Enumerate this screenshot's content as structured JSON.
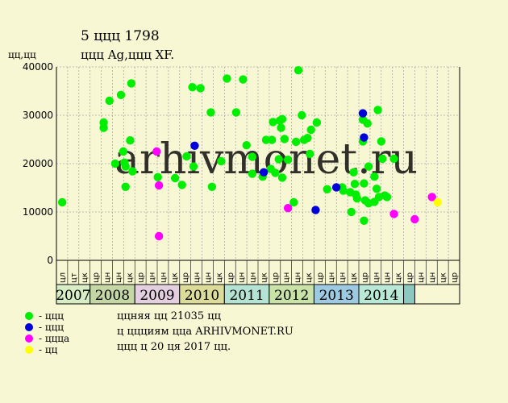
{
  "header": {
    "title": "5 ццц 1798",
    "subtitle": "ццц Ag,ццц XF."
  },
  "watermark": "arhivmonet.ru",
  "legend": [
    {
      "label": "- ццц",
      "color": "#00ee00"
    },
    {
      "label": "- ццц",
      "color": "#0000dd"
    },
    {
      "label": "- цццa",
      "color": "#ff00ff"
    },
    {
      "label": "- цц",
      "color": "#ffff00"
    }
  ],
  "notes": [
    "ццняя цц 21035 цц",
    "ц ццциям цца ARHIVMONET.RU",
    "ццц ц 20 ця 2017 цц."
  ],
  "chart_data": {
    "type": "scatter",
    "ylabel": "цц,цц",
    "ylim": [
      0,
      40000
    ],
    "yticks": [
      0,
      10000,
      20000,
      30000,
      40000
    ],
    "x_range": [
      0,
      35
    ],
    "grid": true,
    "month_labels": [
      "цл",
      "цт",
      "цк",
      "цр",
      "цн",
      "цн",
      "цк",
      "цр",
      "цн",
      "цн",
      "цк",
      "цр",
      "цн",
      "цн",
      "цк",
      "цр",
      "цн",
      "цн",
      "цк",
      "цр",
      "цн",
      "цн",
      "цк",
      "цр",
      "цн",
      "цн",
      "цк",
      "цр",
      "цн",
      "цн",
      "цк",
      "цр",
      "цн",
      "цн",
      "цк",
      "цр"
    ],
    "years": [
      {
        "label": "2007",
        "start": 0,
        "end": 3,
        "color": "#d6edc5"
      },
      {
        "label": "2008",
        "start": 3,
        "end": 7,
        "color": "#c6d7a6"
      },
      {
        "label": "2009",
        "start": 7,
        "end": 11,
        "color": "#e4cfe0"
      },
      {
        "label": "2010",
        "start": 11,
        "end": 15,
        "color": "#dcdc9a"
      },
      {
        "label": "2011",
        "start": 15,
        "end": 19,
        "color": "#b5e3d3"
      },
      {
        "label": "2012",
        "start": 19,
        "end": 23,
        "color": "#c9e2a8"
      },
      {
        "label": "2013",
        "start": 23,
        "end": 27,
        "color": "#9ecae1"
      },
      {
        "label": "2014",
        "start": 27,
        "end": 31,
        "color": "#b9e8d6"
      },
      {
        "label": "",
        "start": 31,
        "end": 32,
        "color": "#8cc7c0"
      }
    ],
    "series": [
      {
        "color": "#00ee00",
        "points": [
          [
            0.5,
            12000
          ],
          [
            4.1,
            28500
          ],
          [
            4.1,
            27400
          ],
          [
            4.6,
            33000
          ],
          [
            5.1,
            20000
          ],
          [
            5.6,
            34200
          ],
          [
            5.8,
            22500
          ],
          [
            5.9,
            20200
          ],
          [
            6.0,
            19400
          ],
          [
            6.0,
            15200
          ],
          [
            6.4,
            24800
          ],
          [
            6.5,
            36600
          ],
          [
            6.6,
            18400
          ],
          [
            8.8,
            17200
          ],
          [
            10.3,
            17000
          ],
          [
            10.9,
            15600
          ],
          [
            11.3,
            21500
          ],
          [
            11.8,
            35800
          ],
          [
            11.9,
            19400
          ],
          [
            12.5,
            35600
          ],
          [
            13.4,
            30600
          ],
          [
            13.5,
            15200
          ],
          [
            14.3,
            20500
          ],
          [
            14.8,
            37600
          ],
          [
            15.6,
            30600
          ],
          [
            16.2,
            37400
          ],
          [
            16.5,
            23800
          ],
          [
            17.0,
            21400
          ],
          [
            17.0,
            17900
          ],
          [
            17.9,
            17300
          ],
          [
            18.2,
            24900
          ],
          [
            18.6,
            18900
          ],
          [
            18.7,
            24900
          ],
          [
            18.8,
            28600
          ],
          [
            19.0,
            18100
          ],
          [
            19.3,
            20900
          ],
          [
            19.4,
            28900
          ],
          [
            19.5,
            27400
          ],
          [
            19.6,
            29200
          ],
          [
            19.6,
            17100
          ],
          [
            19.8,
            25100
          ],
          [
            20.1,
            20800
          ],
          [
            20.6,
            12000
          ],
          [
            20.8,
            24500
          ],
          [
            21.0,
            39300
          ],
          [
            21.3,
            30000
          ],
          [
            21.5,
            24900
          ],
          [
            21.8,
            25300
          ],
          [
            22.0,
            22000
          ],
          [
            22.1,
            27000
          ],
          [
            22.6,
            28500
          ],
          [
            23.5,
            14700
          ],
          [
            24.8,
            15100
          ],
          [
            24.9,
            14400
          ],
          [
            25.5,
            14100
          ],
          [
            25.6,
            10000
          ],
          [
            25.8,
            18200
          ],
          [
            25.9,
            15800
          ],
          [
            26.0,
            13600
          ],
          [
            26.1,
            12800
          ],
          [
            26.6,
            29100
          ],
          [
            26.6,
            24600
          ],
          [
            26.7,
            15900
          ],
          [
            26.7,
            8200
          ],
          [
            26.8,
            12400
          ],
          [
            27.0,
            28300
          ],
          [
            27.1,
            19400
          ],
          [
            27.1,
            11800
          ],
          [
            27.6,
            17300
          ],
          [
            27.6,
            12100
          ],
          [
            27.8,
            14800
          ],
          [
            27.9,
            31100
          ],
          [
            28.0,
            13100
          ],
          [
            28.2,
            24600
          ],
          [
            28.3,
            21000
          ],
          [
            28.5,
            13400
          ],
          [
            28.7,
            13100
          ],
          [
            29.3,
            21000
          ]
        ]
      },
      {
        "color": "#0000dd",
        "points": [
          [
            12.0,
            23700
          ],
          [
            18.0,
            18200
          ],
          [
            22.5,
            10400
          ],
          [
            24.3,
            15100
          ],
          [
            26.6,
            30400
          ],
          [
            26.7,
            25400
          ]
        ]
      },
      {
        "color": "#ff00ff",
        "points": [
          [
            8.7,
            22500
          ],
          [
            8.9,
            15500
          ],
          [
            8.9,
            5000
          ],
          [
            20.1,
            10800
          ],
          [
            29.3,
            9600
          ],
          [
            31.1,
            8500
          ],
          [
            32.6,
            13100
          ]
        ]
      },
      {
        "color": "#ffff00",
        "points": [
          [
            33.1,
            12000
          ]
        ]
      }
    ]
  }
}
